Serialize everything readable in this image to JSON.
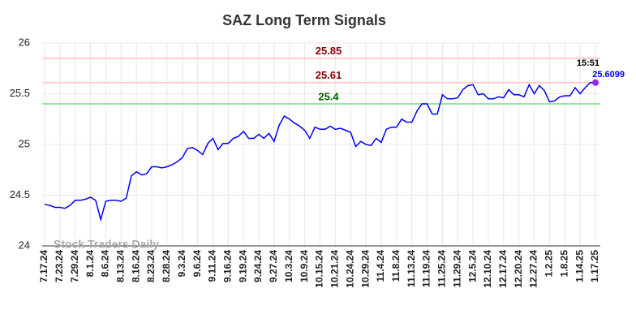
{
  "chart_data": {
    "type": "line",
    "title": "SAZ Long Term Signals",
    "watermark": "Stock Traders Daily",
    "categories": [
      "7.17.24",
      null,
      null,
      "7.23.24",
      null,
      null,
      "7.29.24",
      null,
      null,
      "8.1.24",
      null,
      null,
      "8.6.24",
      null,
      null,
      "8.13.24",
      null,
      null,
      "8.16.24",
      null,
      null,
      "8.23.24",
      null,
      null,
      "8.28.24",
      null,
      null,
      "9.3.24",
      null,
      null,
      "9.6.24",
      null,
      null,
      "9.11.24",
      null,
      null,
      "9.16.24",
      null,
      null,
      "9.19.24",
      null,
      null,
      "9.24.24",
      null,
      null,
      "9.27.24",
      null,
      null,
      "10.3.24",
      null,
      null,
      "10.9.24",
      null,
      null,
      "10.15.24",
      null,
      null,
      "10.21.24",
      null,
      null,
      "10.24.24",
      null,
      null,
      "10.29.24",
      null,
      null,
      "11.4.24",
      null,
      null,
      "11.8.24",
      null,
      null,
      "11.13.24",
      null,
      null,
      "11.19.24",
      null,
      null,
      "11.25.24",
      null,
      null,
      "11.29.24",
      null,
      null,
      "12.5.24",
      null,
      null,
      "12.10.24",
      null,
      null,
      "12.17.24",
      null,
      null,
      "12.20.24",
      null,
      null,
      "12.27.24",
      null,
      null,
      "1.2.25",
      null,
      null,
      "1.8.25",
      null,
      null,
      "1.14.25",
      null,
      null,
      "1.17.25"
    ],
    "series": [
      {
        "color": "#0000ff",
        "values": [
          24.41,
          24.4,
          24.38,
          24.38,
          24.37,
          24.4,
          24.45,
          24.45,
          24.46,
          24.48,
          24.45,
          24.26,
          24.44,
          24.45,
          24.45,
          24.44,
          24.47,
          24.69,
          24.73,
          24.7,
          24.71,
          24.78,
          24.78,
          24.77,
          24.78,
          24.8,
          24.83,
          24.87,
          24.96,
          24.97,
          24.94,
          24.9,
          25.01,
          25.06,
          24.95,
          25.01,
          25.01,
          25.06,
          25.08,
          25.13,
          25.06,
          25.06,
          25.1,
          25.06,
          25.11,
          25.03,
          25.19,
          25.28,
          25.25,
          25.21,
          25.18,
          25.14,
          25.06,
          25.17,
          25.15,
          25.15,
          25.18,
          25.15,
          25.16,
          25.14,
          25.12,
          24.98,
          25.03,
          25.0,
          24.99,
          25.06,
          25.02,
          25.15,
          25.17,
          25.17,
          25.25,
          25.22,
          25.22,
          25.33,
          25.4,
          25.4,
          25.3,
          25.3,
          25.49,
          25.45,
          25.45,
          25.46,
          25.54,
          25.58,
          25.59,
          25.49,
          25.5,
          25.45,
          25.45,
          25.47,
          25.46,
          25.54,
          25.49,
          25.49,
          25.47,
          25.59,
          25.5,
          25.58,
          25.53,
          25.42,
          25.43,
          25.47,
          25.48,
          25.48,
          25.56,
          25.5,
          25.56,
          25.61,
          25.6099
        ]
      }
    ],
    "last_time": "15:51",
    "reference_lines": [
      {
        "value": 25.85,
        "color": "#ffcccc",
        "label_color": "#8b0000"
      },
      {
        "value": 25.61,
        "color": "#ffcccc",
        "label_color": "#8b0000"
      },
      {
        "value": 25.4,
        "color": "#99e699",
        "label_color": "#006400"
      }
    ],
    "ylim": [
      24,
      26
    ],
    "yticks": [
      24,
      24.5,
      25,
      25.5,
      26
    ],
    "grid": true
  }
}
